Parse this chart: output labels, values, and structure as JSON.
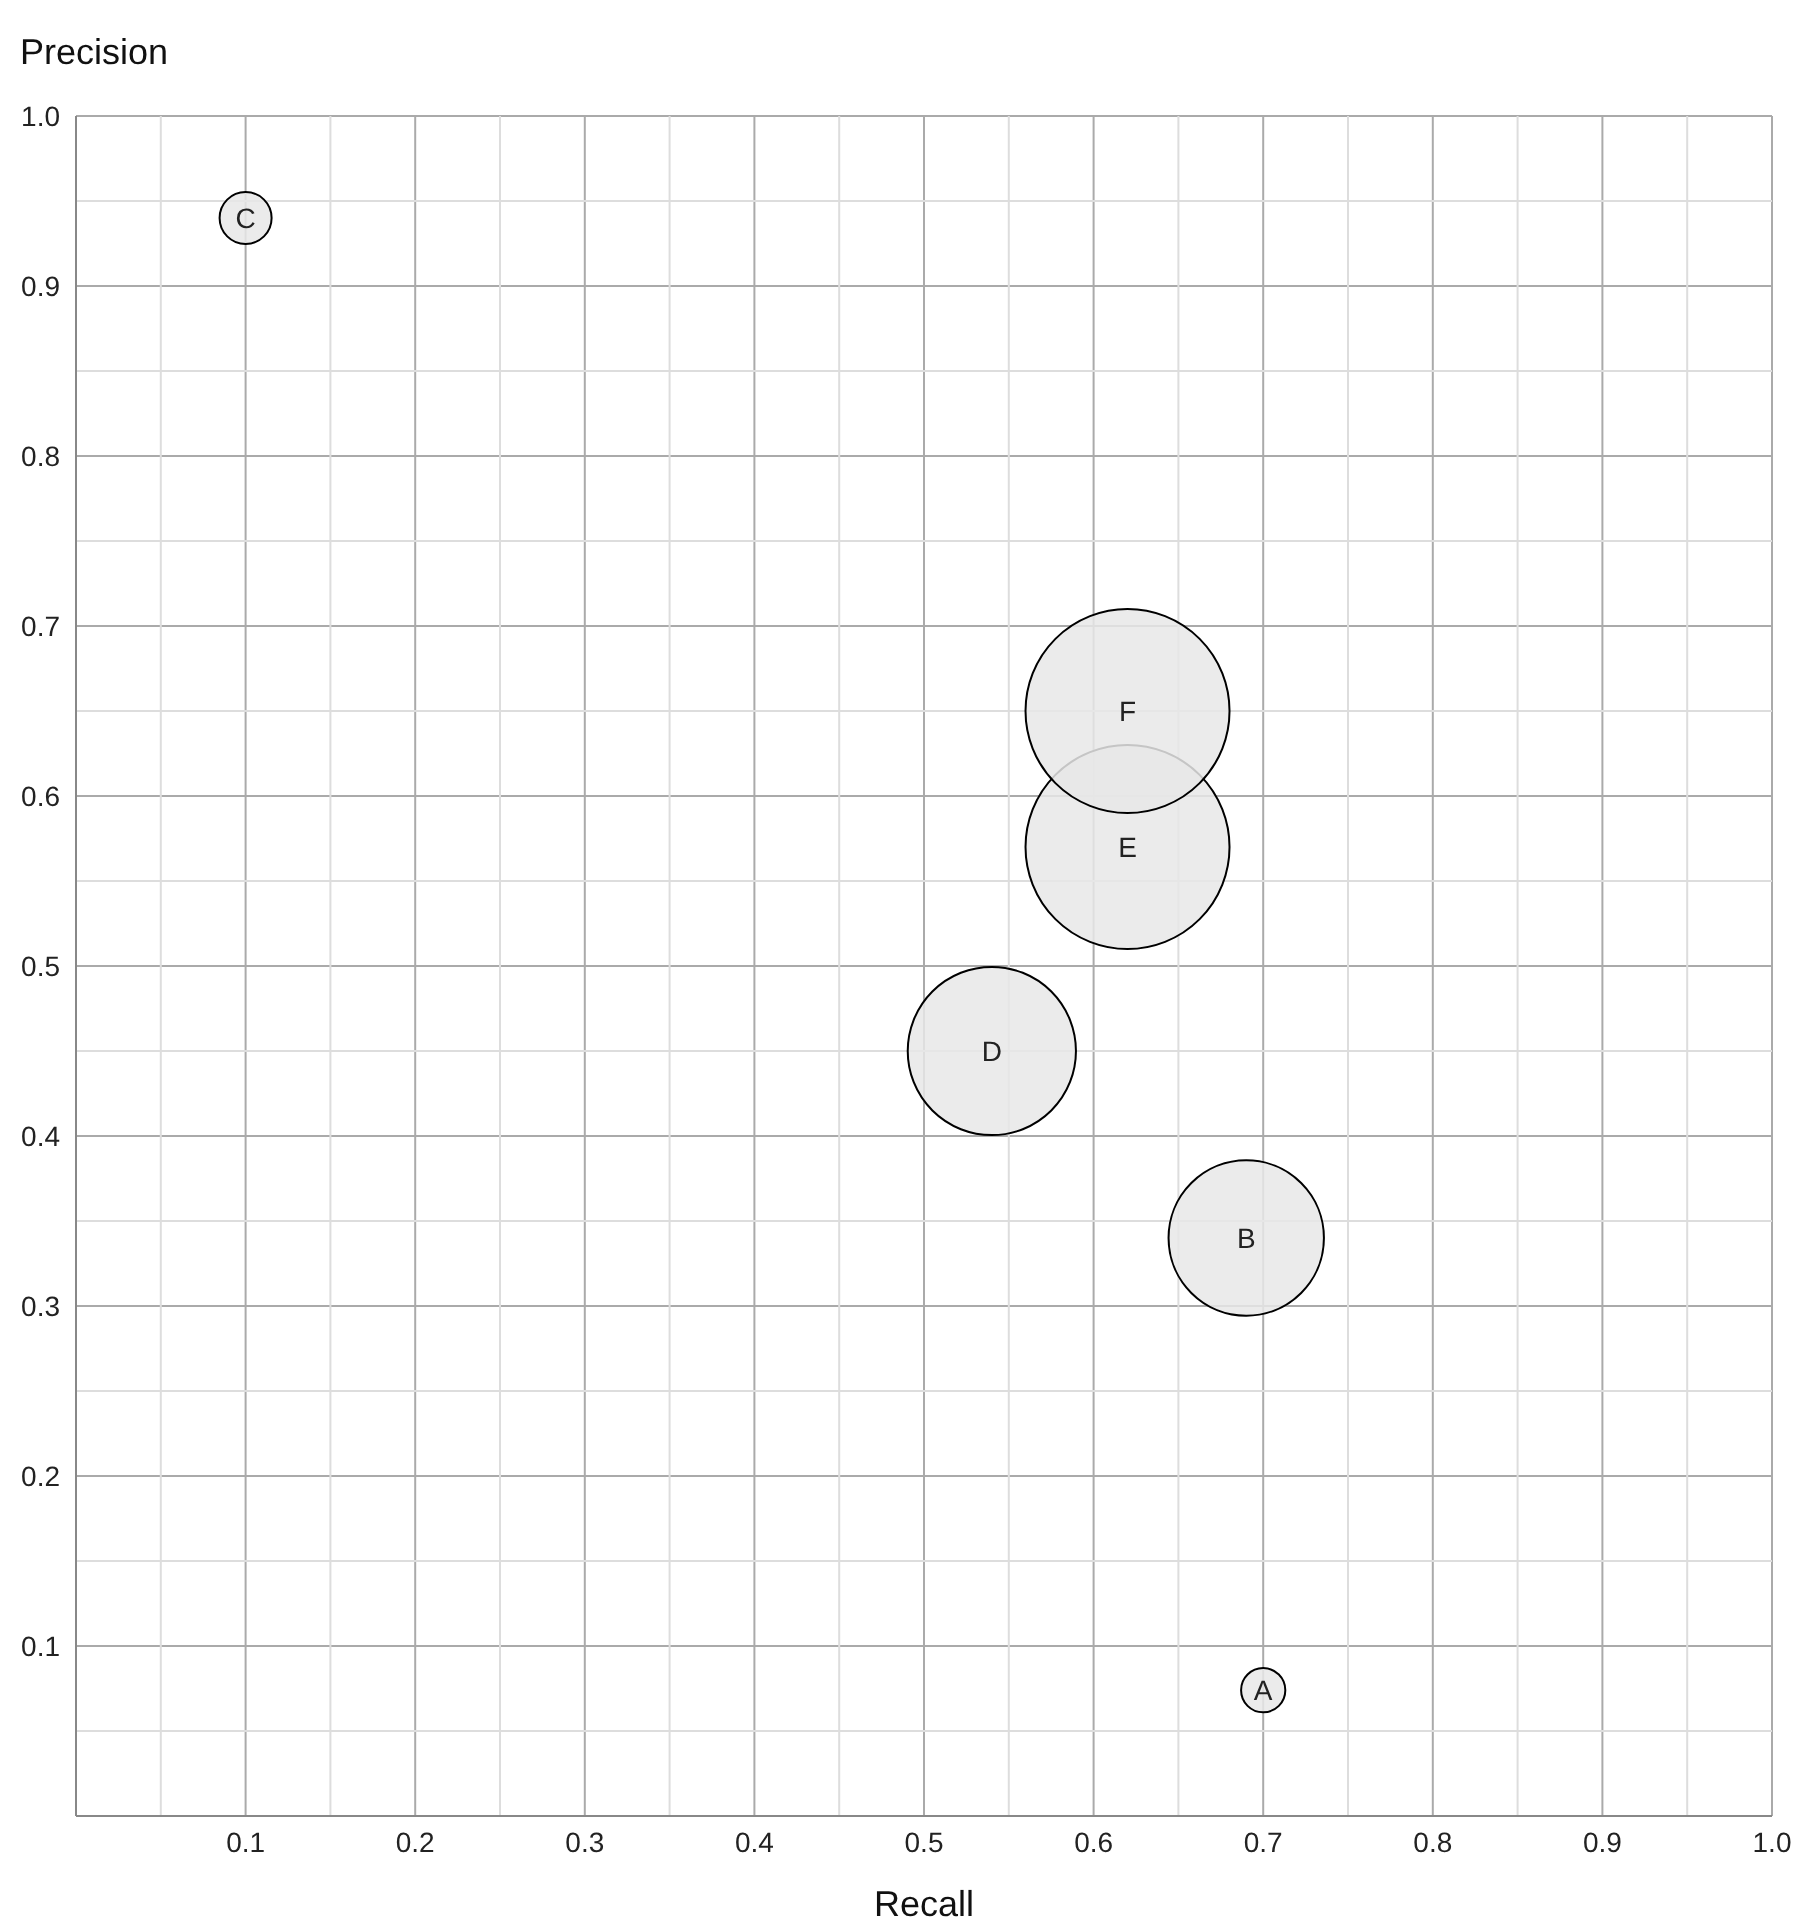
{
  "chart_data": {
    "type": "bubble",
    "xlabel": "Recall",
    "ylabel": "Precision",
    "xlim": [
      0,
      1
    ],
    "ylim": [
      0,
      1
    ],
    "xticks": [
      {
        "value": 0.05,
        "label": null
      },
      0.1,
      {
        "value": 0.15,
        "label": null
      },
      0.2,
      {
        "value": 0.25,
        "label": null
      },
      0.3,
      {
        "value": 0.35,
        "label": null
      },
      0.4,
      {
        "value": 0.45,
        "label": null
      },
      0.5,
      {
        "value": 0.55,
        "label": null
      },
      0.6,
      {
        "value": 0.65,
        "label": null
      },
      0.7,
      {
        "value": 0.75,
        "label": null
      },
      0.8,
      {
        "value": 0.85,
        "label": null
      },
      0.9,
      {
        "value": 0.95,
        "label": null
      },
      {
        "value": 1,
        "label": "1.0"
      }
    ],
    "yticks": [
      {
        "value": 0.05,
        "label": null
      },
      0.1,
      {
        "value": 0.15,
        "label": null
      },
      0.2,
      {
        "value": 0.25,
        "label": null
      },
      0.3,
      {
        "value": 0.35,
        "label": null
      },
      0.4,
      {
        "value": 0.45,
        "label": null
      },
      0.5,
      {
        "value": 0.55,
        "label": null
      },
      0.6,
      {
        "value": 0.65,
        "label": null
      },
      0.7,
      {
        "value": 0.75,
        "label": null
      },
      0.8,
      {
        "value": 0.85,
        "label": null
      },
      0.9,
      {
        "value": 0.95,
        "label": null
      },
      {
        "value": 1,
        "label": "1.0"
      }
    ],
    "grid": true,
    "legend": false,
    "series": [
      {
        "name": "A",
        "color": "#e8e8e8",
        "x": [
          0.7
        ],
        "values": [
          0.074
        ],
        "sizes": [
          0.047
        ]
      },
      {
        "name": "B",
        "color": "#e8e8e8",
        "x": [
          0.69
        ],
        "values": [
          0.34
        ],
        "sizes": [
          0.58
        ]
      },
      {
        "name": "C",
        "color": "#e8e8e8",
        "x": [
          0.1
        ],
        "values": [
          0.94
        ],
        "sizes": [
          0.065
        ]
      },
      {
        "name": "D",
        "color": "#e8e8e8",
        "x": [
          0.54
        ],
        "values": [
          0.45
        ],
        "sizes": [
          0.68
        ]
      },
      {
        "name": "E",
        "color": "#e8e8e8",
        "x": [
          0.62
        ],
        "values": [
          0.57
        ],
        "sizes": [
          1
        ]
      },
      {
        "name": "F",
        "color": "#e8e8e8",
        "x": [
          0.62
        ],
        "values": [
          0.65
        ],
        "sizes": [
          1
        ]
      }
    ]
  }
}
